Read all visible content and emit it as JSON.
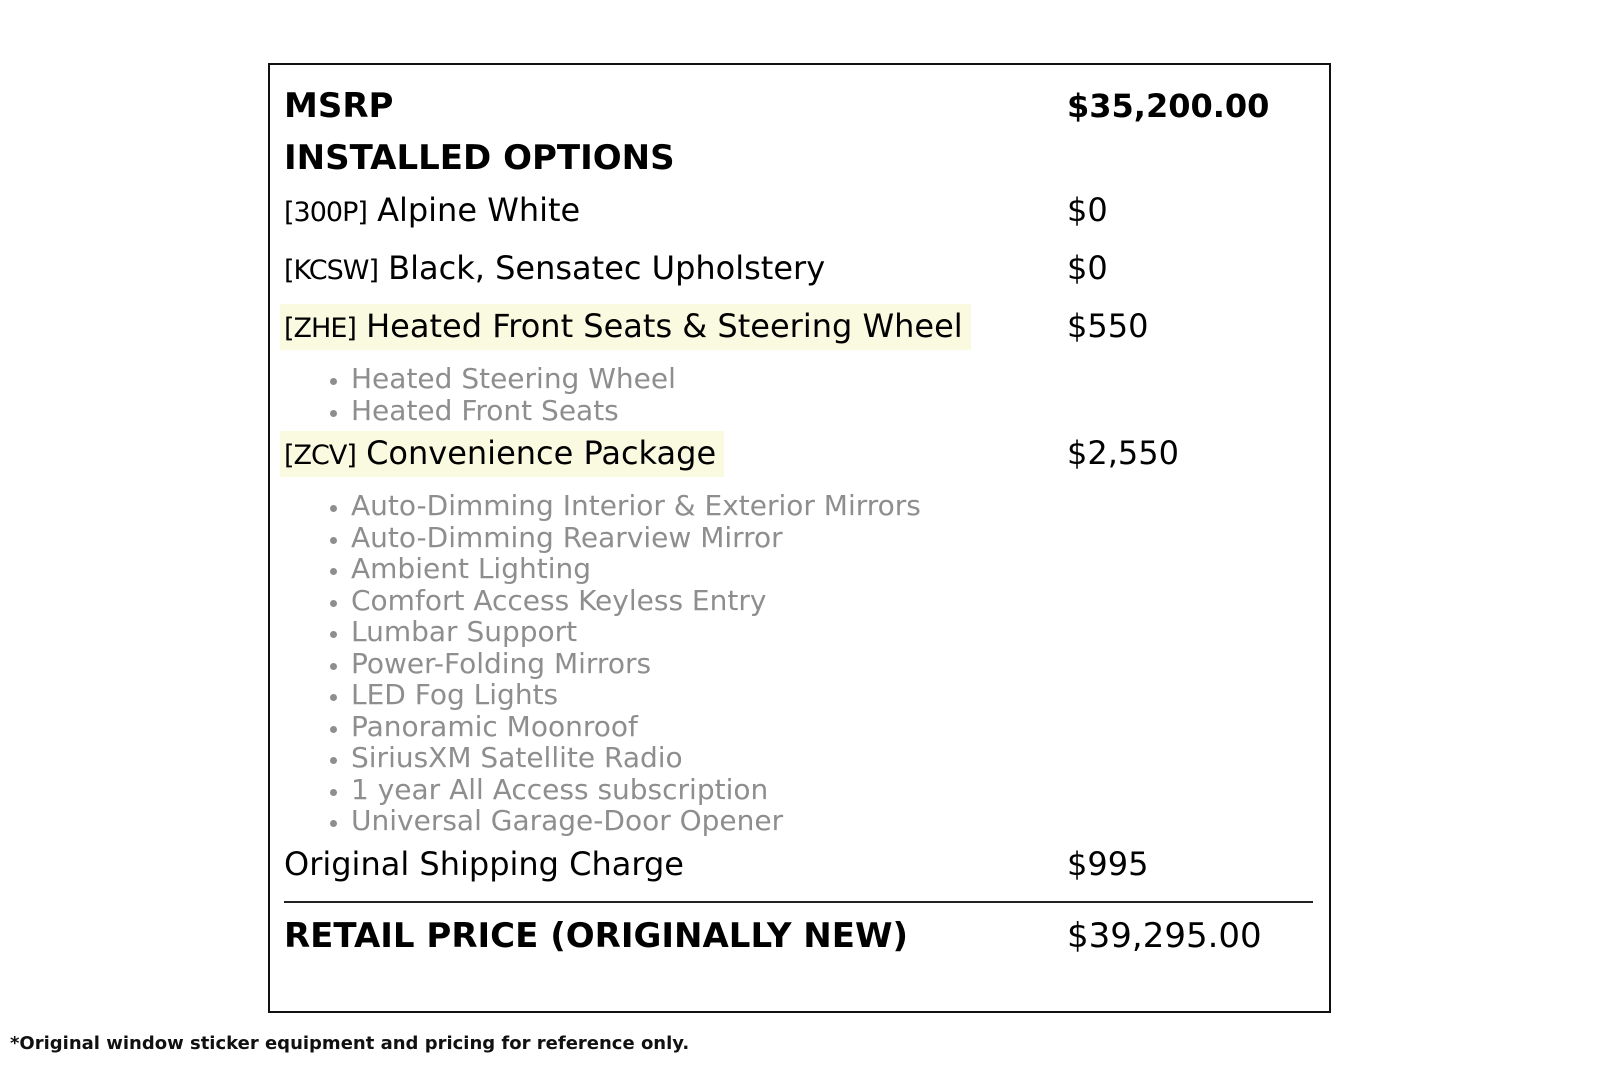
{
  "document": {
    "msrp": {
      "label": "MSRP",
      "value": "$35,200.00"
    },
    "installed_options_heading": "INSTALLED OPTIONS",
    "options": [
      {
        "code": "[300P]",
        "name": "Alpine White",
        "price": "$0",
        "highlighted": false,
        "features": []
      },
      {
        "code": "[KCSW]",
        "name": "Black, Sensatec Upholstery",
        "price": "$0",
        "highlighted": false,
        "features": []
      },
      {
        "code": "[ZHE]",
        "name": "Heated Front Seats & Steering Wheel",
        "price": "$550",
        "highlighted": true,
        "features": [
          "Heated Steering Wheel",
          "Heated Front Seats"
        ]
      },
      {
        "code": "[ZCV]",
        "name": "Convenience Package",
        "price": "$2,550",
        "highlighted": true,
        "features": [
          "Auto-Dimming Interior & Exterior Mirrors",
          "Auto-Dimming Rearview Mirror",
          "Ambient Lighting",
          "Comfort Access Keyless Entry",
          "Lumbar Support",
          "Power-Folding Mirrors",
          "LED Fog Lights",
          "Panoramic Moonroof",
          "SiriusXM Satellite Radio",
          "1 year All Access subscription",
          "Universal Garage-Door Opener"
        ]
      }
    ],
    "shipping": {
      "label": "Original Shipping Charge",
      "price": "$995"
    },
    "retail": {
      "label": "RETAIL PRICE (ORIGINALLY NEW)",
      "price": "$39,295.00"
    },
    "footnote": "*Original window sticker equipment and pricing for reference only.",
    "colors": {
      "highlight": "#fafae1",
      "feature_text": "#8e8e8e",
      "border": "#111111"
    }
  }
}
